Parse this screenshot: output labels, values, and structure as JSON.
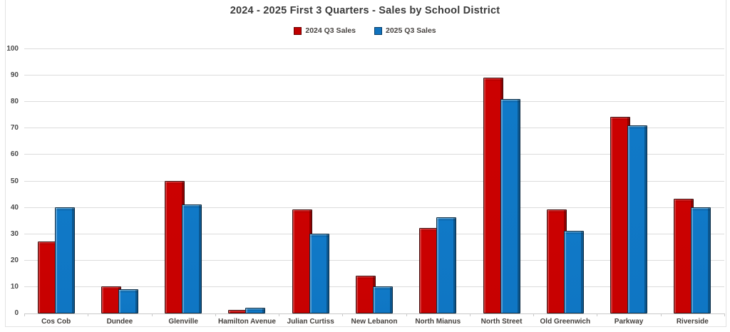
{
  "title": "2024 - 2025 First 3 Quarters - Sales by School District",
  "chart_data": {
    "type": "bar",
    "title": "2024 - 2025 First 3 Quarters - Sales by School District",
    "categories": [
      "Cos Cob",
      "Dundee",
      "Glenville",
      "Hamilton Avenue",
      "Julian Curtiss",
      "New Lebanon",
      "North Mianus",
      "North Street",
      "Old Greenwich",
      "Parkway",
      "Riverside"
    ],
    "series": [
      {
        "name": "2024 Q3 Sales",
        "color": "#c00000",
        "values": [
          27,
          10,
          50,
          1,
          39,
          14,
          32,
          89,
          39,
          74,
          43
        ]
      },
      {
        "name": "2025 Q3 Sales",
        "color": "#1072bd",
        "values": [
          40,
          9,
          41,
          2,
          30,
          10,
          36,
          81,
          31,
          71,
          40
        ]
      }
    ],
    "xlabel": "",
    "ylabel": "",
    "ylim": [
      0,
      100
    ],
    "ytick_step": 10,
    "ytick_labels": [
      "0",
      "10",
      "20",
      "30",
      "40",
      "50",
      "60",
      "70",
      "80",
      "90",
      "100"
    ],
    "grid": true,
    "legend_position": "top",
    "gridline_color": "#dcdcdc",
    "text_color": "#3b3b3b",
    "background_color": "#ffffff"
  }
}
